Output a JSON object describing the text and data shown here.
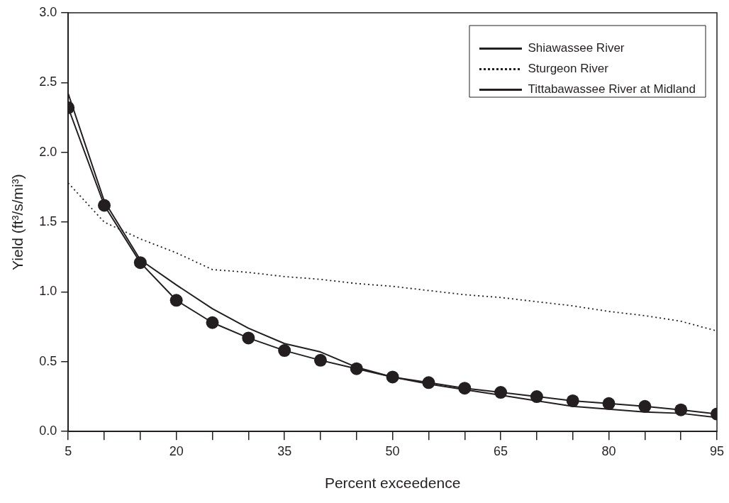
{
  "chart_data": {
    "type": "line",
    "xlabel": "Percent exceedence",
    "ylabel": "Yield (ft³/s/mi³)",
    "x": [
      5,
      10,
      15,
      20,
      25,
      30,
      35,
      40,
      45,
      50,
      55,
      60,
      65,
      70,
      75,
      80,
      85,
      90,
      95
    ],
    "xlim": [
      5,
      95
    ],
    "xticks": [
      5,
      {
        "value": 10,
        "label": null
      },
      {
        "value": 15,
        "label": null
      },
      20,
      {
        "value": 25,
        "label": null
      },
      {
        "value": 30,
        "label": null
      },
      35,
      {
        "value": 40,
        "label": null
      },
      {
        "value": 45,
        "label": null
      },
      50,
      {
        "value": 55,
        "label": null
      },
      {
        "value": 60,
        "label": null
      },
      65,
      {
        "value": 70,
        "label": null
      },
      {
        "value": 75,
        "label": null
      },
      80,
      {
        "value": 85,
        "label": null
      },
      {
        "value": 90,
        "label": null
      },
      95
    ],
    "ylim": [
      0,
      3
    ],
    "yticks": [
      {
        "value": 0,
        "label": "0.0"
      },
      0.5,
      {
        "value": 1,
        "label": "1.0"
      },
      1.5,
      {
        "value": 2,
        "label": "2.0"
      },
      2.5,
      {
        "value": 3,
        "label": "3.0"
      }
    ],
    "grid": false,
    "legend": "top right",
    "series": [
      {
        "name": "Shiawassee River",
        "color": "#231f20",
        "line_style": "solid",
        "marker": "none",
        "values": [
          2.42,
          1.65,
          1.23,
          1.05,
          0.88,
          0.74,
          0.63,
          0.57,
          0.46,
          0.39,
          0.34,
          0.3,
          0.26,
          0.22,
          0.18,
          0.16,
          0.14,
          0.13,
          0.1
        ]
      },
      {
        "name": "Sturgeon River",
        "color": "#231f20",
        "line_style": "dotted",
        "marker": "none",
        "values": [
          1.78,
          1.5,
          1.38,
          1.28,
          1.16,
          1.14,
          1.11,
          1.09,
          1.06,
          1.04,
          1.01,
          0.98,
          0.96,
          0.93,
          0.9,
          0.86,
          0.83,
          0.79,
          0.72
        ]
      },
      {
        "name": "Tittabawassee River at Midland",
        "color": "#231f20",
        "line_style": "solid",
        "marker": "circle",
        "values": [
          2.32,
          1.62,
          1.21,
          0.94,
          0.78,
          0.67,
          0.58,
          0.51,
          0.45,
          0.39,
          0.35,
          0.31,
          0.28,
          0.25,
          0.22,
          0.2,
          0.18,
          0.155,
          0.125
        ]
      }
    ]
  }
}
